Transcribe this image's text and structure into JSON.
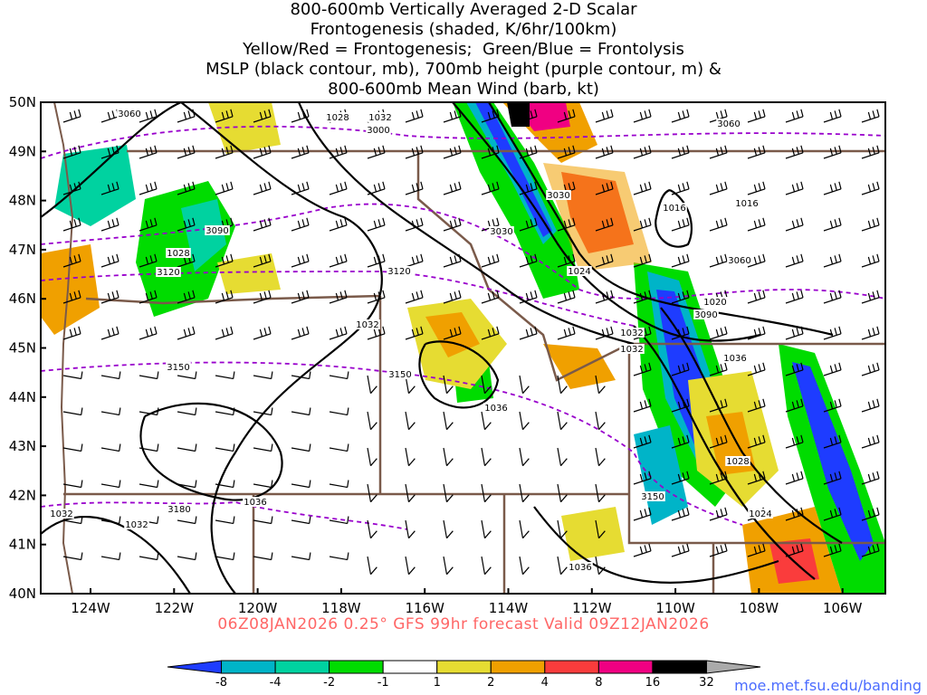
{
  "title_lines": [
    "800-600mb Vertically Averaged 2-D Scalar",
    "Frontogenesis (shaded, K/6hr/100km)",
    "Yellow/Red = Frontogenesis;  Green/Blue = Frontolysis",
    "MSLP (black contour, mb), 700mb height (purple contour, m) &",
    "800-600mb Mean Wind (barb, kt)"
  ],
  "lat_labels": [
    "50N",
    "49N",
    "48N",
    "47N",
    "46N",
    "45N",
    "44N",
    "43N",
    "42N",
    "41N",
    "40N"
  ],
  "lon_labels": [
    "124W",
    "122W",
    "120W",
    "118W",
    "116W",
    "114W",
    "112W",
    "110W",
    "108W",
    "106W"
  ],
  "footer": "06Z08JAN2026 0.25° GFS 99hr forecast Valid 09Z12JAN2026",
  "credit": "moe.met.fsu.edu/banding",
  "colorbar": {
    "labels": [
      "-8",
      "-4",
      "-2",
      "-1",
      "1",
      "2",
      "4",
      "8",
      "16",
      "32"
    ],
    "colors": [
      "#1e3cff",
      "#00b4c8",
      "#00d2a0",
      "#00dc00",
      "#ffffff",
      "#e6dc32",
      "#f0a000",
      "#fa3c3c",
      "#f00082",
      "#000000",
      "#aaaaaa"
    ]
  },
  "mslp_labels": [
    "1028",
    "1028",
    "1024",
    "1032",
    "1036",
    "1032",
    "1032",
    "1036",
    "1032",
    "1024",
    "1028",
    "1032",
    "1036",
    "1016",
    "1016",
    "1020",
    "1032",
    "1036"
  ],
  "height_labels": [
    "3060",
    "3060",
    "3000",
    "3090",
    "3120",
    "3120",
    "3150",
    "3150",
    "3180",
    "3030",
    "3060",
    "3090",
    "3150",
    "3030"
  ],
  "colors": {
    "mslp": "#000000",
    "height": "#9900cc",
    "border": "#7a5a4a",
    "frame": "#000000",
    "footer": "#ff6666",
    "credit": "#4b6cff"
  }
}
